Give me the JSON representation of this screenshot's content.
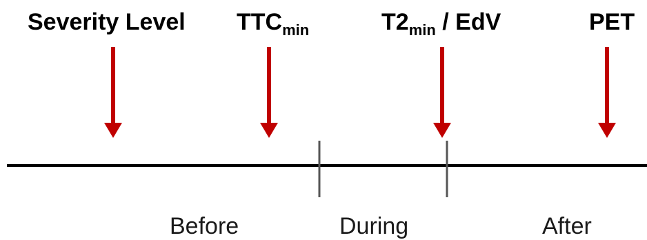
{
  "labels": {
    "severity": "Severity Level",
    "ttc_main": "TTC",
    "ttc_sub": "min",
    "t2_main": "T2",
    "t2_sub": "min",
    "t2_rest": " / EdV",
    "pet": "PET"
  },
  "phases": {
    "before": "Before",
    "during": "During",
    "after": "After"
  },
  "colors": {
    "arrow": "#c00000",
    "axis": "#000000",
    "tick": "#555555"
  }
}
